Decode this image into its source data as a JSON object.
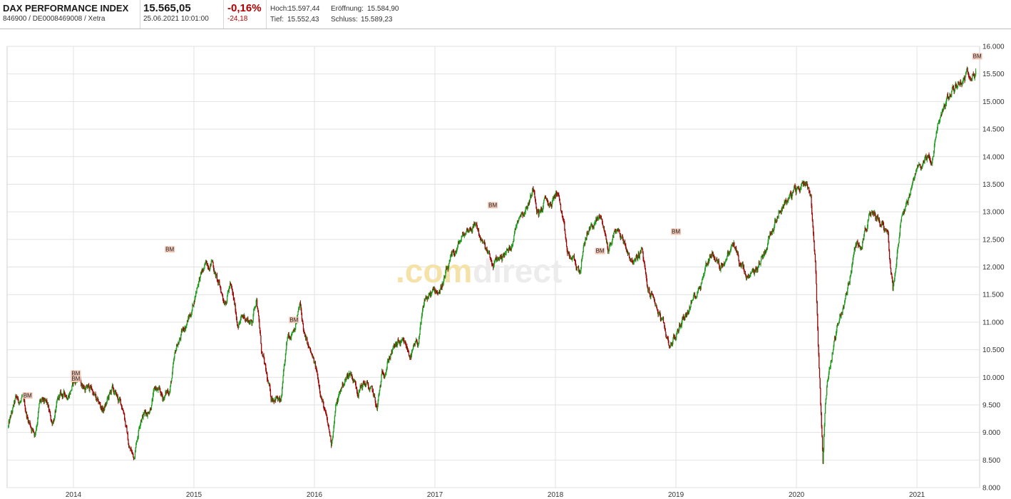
{
  "header": {
    "name": "DAX PERFORMANCE INDEX",
    "ids": "846900 / DE0008469008 / Xetra",
    "price": "15.565,05",
    "datetime": "25.06.2021 10:01:00",
    "change_pct": "-0,16%",
    "change_abs": "-24,18",
    "hoch_label": "Hoch:",
    "hoch_value": "15.597,44",
    "eroeffnung_label": "Eröffnung:",
    "eroeffnung_value": "15.584,90",
    "tief_label": "Tief:",
    "tief_value": "15.552,43",
    "schluss_label": "Schluss:",
    "schluss_value": "15.589,23"
  },
  "watermark": {
    "part1": ".com",
    "part2": "direct"
  },
  "colors": {
    "up": "#1a9a1a",
    "down": "#9b0000",
    "grid": "#e2e2e2",
    "negative": "#b00000",
    "bm_fill": "#f3c9b8"
  },
  "chart_data": {
    "type": "candlestick",
    "title": "",
    "xlabel": "",
    "ylabel": "",
    "ylim": [
      8000,
      16000
    ],
    "xlim": [
      2013.45,
      2021.52
    ],
    "x_tick_labels": [
      "2014",
      "2015",
      "2016",
      "2017",
      "2018",
      "2019",
      "2020",
      "2021"
    ],
    "x_ticks": [
      2014,
      2015,
      2016,
      2017,
      2018,
      2019,
      2020,
      2021
    ],
    "y_ticks": [
      8000,
      8500,
      9000,
      9500,
      10000,
      10500,
      11000,
      11500,
      12000,
      12500,
      13000,
      13500,
      14000,
      14500,
      15000,
      15500,
      16000
    ],
    "y_tick_labels": [
      "8.000",
      "8.500",
      "9.000",
      "9.500",
      "10.000",
      "10.500",
      "11.000",
      "11.500",
      "12.000",
      "12.500",
      "13.000",
      "13.500",
      "14.000",
      "14.500",
      "15.000",
      "15.500",
      "16.000"
    ],
    "grid": true,
    "y_axis_side": "right",
    "close_path": [
      [
        2013.46,
        9100
      ],
      [
        2013.52,
        9550
      ],
      [
        2013.58,
        9550
      ],
      [
        2013.62,
        9250
      ],
      [
        2013.68,
        9000
      ],
      [
        2013.72,
        9550
      ],
      [
        2013.78,
        9450
      ],
      [
        2013.82,
        9150
      ],
      [
        2013.88,
        9600
      ],
      [
        2013.95,
        9700
      ],
      [
        2014.0,
        9900
      ],
      [
        2014.04,
        10000
      ],
      [
        2014.1,
        9800
      ],
      [
        2014.15,
        9800
      ],
      [
        2014.2,
        9500
      ],
      [
        2014.25,
        9400
      ],
      [
        2014.32,
        9750
      ],
      [
        2014.38,
        9550
      ],
      [
        2014.42,
        9400
      ],
      [
        2014.46,
        8750
      ],
      [
        2014.5,
        8550
      ],
      [
        2014.56,
        9350
      ],
      [
        2014.62,
        9400
      ],
      [
        2014.68,
        9800
      ],
      [
        2014.74,
        9600
      ],
      [
        2014.8,
        9800
      ],
      [
        2014.86,
        10550
      ],
      [
        2014.92,
        10900
      ],
      [
        2014.98,
        11200
      ],
      [
        2015.04,
        11800
      ],
      [
        2015.1,
        12000
      ],
      [
        2015.15,
        12150
      ],
      [
        2015.2,
        11700
      ],
      [
        2015.25,
        11400
      ],
      [
        2015.3,
        11700
      ],
      [
        2015.36,
        11000
      ],
      [
        2015.42,
        11100
      ],
      [
        2015.48,
        11000
      ],
      [
        2015.52,
        11500
      ],
      [
        2015.56,
        10500
      ],
      [
        2015.6,
        10000
      ],
      [
        2015.64,
        9600
      ],
      [
        2015.68,
        9700
      ],
      [
        2015.72,
        9500
      ],
      [
        2015.78,
        10700
      ],
      [
        2015.84,
        11000
      ],
      [
        2015.88,
        11300
      ],
      [
        2015.92,
        10700
      ],
      [
        2016.0,
        10200
      ],
      [
        2016.06,
        9700
      ],
      [
        2016.1,
        9200
      ],
      [
        2016.14,
        8800
      ],
      [
        2016.18,
        9500
      ],
      [
        2016.24,
        9900
      ],
      [
        2016.3,
        10100
      ],
      [
        2016.36,
        9800
      ],
      [
        2016.42,
        9900
      ],
      [
        2016.48,
        9700
      ],
      [
        2016.52,
        9400
      ],
      [
        2016.56,
        10000
      ],
      [
        2016.62,
        10400
      ],
      [
        2016.7,
        10600
      ],
      [
        2016.76,
        10500
      ],
      [
        2016.8,
        10400
      ],
      [
        2016.86,
        10600
      ],
      [
        2016.92,
        11400
      ],
      [
        2016.98,
        11500
      ],
      [
        2017.04,
        11600
      ],
      [
        2017.1,
        11900
      ],
      [
        2017.16,
        12200
      ],
      [
        2017.22,
        12500
      ],
      [
        2017.28,
        12700
      ],
      [
        2017.34,
        12800
      ],
      [
        2017.4,
        12400
      ],
      [
        2017.44,
        12200
      ],
      [
        2017.48,
        12000
      ],
      [
        2017.55,
        12200
      ],
      [
        2017.62,
        12300
      ],
      [
        2017.7,
        13000
      ],
      [
        2017.76,
        13100
      ],
      [
        2017.82,
        13450
      ],
      [
        2017.86,
        13000
      ],
      [
        2017.92,
        13200
      ],
      [
        2017.96,
        13100
      ],
      [
        2018.02,
        13400
      ],
      [
        2018.06,
        12800
      ],
      [
        2018.1,
        12200
      ],
      [
        2018.15,
        12100
      ],
      [
        2018.2,
        11900
      ],
      [
        2018.26,
        12600
      ],
      [
        2018.32,
        12800
      ],
      [
        2018.38,
        12900
      ],
      [
        2018.44,
        12300
      ],
      [
        2018.5,
        12700
      ],
      [
        2018.56,
        12500
      ],
      [
        2018.62,
        12200
      ],
      [
        2018.66,
        12100
      ],
      [
        2018.72,
        12300
      ],
      [
        2018.76,
        11600
      ],
      [
        2018.82,
        11400
      ],
      [
        2018.88,
        11000
      ],
      [
        2018.94,
        10600
      ],
      [
        2019.0,
        10750
      ],
      [
        2019.06,
        11100
      ],
      [
        2019.12,
        11300
      ],
      [
        2019.18,
        11600
      ],
      [
        2019.26,
        12100
      ],
      [
        2019.3,
        12300
      ],
      [
        2019.36,
        12000
      ],
      [
        2019.42,
        12200
      ],
      [
        2019.48,
        12400
      ],
      [
        2019.54,
        12000
      ],
      [
        2019.6,
        11700
      ],
      [
        2019.66,
        11900
      ],
      [
        2019.72,
        12200
      ],
      [
        2019.78,
        12600
      ],
      [
        2019.84,
        13000
      ],
      [
        2019.9,
        13200
      ],
      [
        2019.96,
        13300
      ],
      [
        2020.02,
        13400
      ],
      [
        2020.08,
        13600
      ],
      [
        2020.12,
        13300
      ],
      [
        2020.16,
        12000
      ],
      [
        2020.18,
        10600
      ],
      [
        2020.2,
        9500
      ],
      [
        2020.22,
        8500
      ],
      [
        2020.24,
        9600
      ],
      [
        2020.26,
        10000
      ],
      [
        2020.3,
        10500
      ],
      [
        2020.36,
        11100
      ],
      [
        2020.42,
        11500
      ],
      [
        2020.48,
        12300
      ],
      [
        2020.54,
        12500
      ],
      [
        2020.6,
        12900
      ],
      [
        2020.66,
        12900
      ],
      [
        2020.72,
        12800
      ],
      [
        2020.76,
        12600
      ],
      [
        2020.8,
        11600
      ],
      [
        2020.84,
        12500
      ],
      [
        2020.88,
        13100
      ],
      [
        2020.94,
        13300
      ],
      [
        2021.0,
        13700
      ],
      [
        2021.04,
        13900
      ],
      [
        2021.08,
        14000
      ],
      [
        2021.12,
        13900
      ],
      [
        2021.18,
        14600
      ],
      [
        2021.24,
        15000
      ],
      [
        2021.3,
        15200
      ],
      [
        2021.36,
        15400
      ],
      [
        2021.42,
        15500
      ],
      [
        2021.46,
        15600
      ],
      [
        2021.49,
        15565
      ]
    ],
    "annotations": [
      {
        "label": "BM",
        "x": 2013.62,
        "y": 9650
      },
      {
        "label": "BM",
        "x": 2014.02,
        "y": 10050
      },
      {
        "label": "BM",
        "x": 2014.02,
        "y": 9950
      },
      {
        "label": "BM",
        "x": 2014.8,
        "y": 12300
      },
      {
        "label": "BM",
        "x": 2015.83,
        "y": 11020
      },
      {
        "label": "BM",
        "x": 2017.48,
        "y": 13100
      },
      {
        "label": "BM",
        "x": 2018.37,
        "y": 12270
      },
      {
        "label": "BM",
        "x": 2019.0,
        "y": 12620
      },
      {
        "label": "BM",
        "x": 2021.5,
        "y": 15800
      }
    ]
  }
}
